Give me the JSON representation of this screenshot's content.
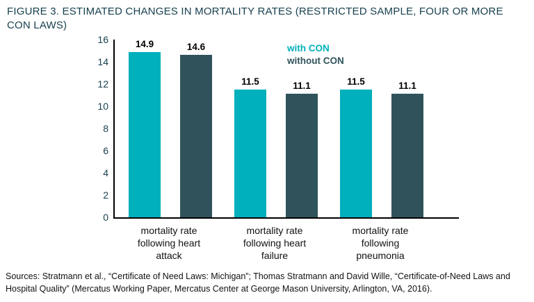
{
  "figure": {
    "title": "FIGURE 3. ESTIMATED CHANGES IN MORTALITY RATES (RESTRICTED SAMPLE, FOUR OR MORE CON LAWS)",
    "source": "Sources: Stratmann et al., “Certificate of Need Laws: Michigan”; Thomas Stratmann and David Wille, “Certificate-of-Need Laws and Hospital Quality” (Mercatus Working Paper, Mercatus Center at George Mason University, Arlington, VA, 2016)."
  },
  "colors": {
    "title_text": "#17404f",
    "with_con": "#00b0bc",
    "without_con": "#30535b",
    "axis": "#000000",
    "value_label": "#000000",
    "category_label": "#111111"
  },
  "chart_data": {
    "type": "bar",
    "title": "FIGURE 3. ESTIMATED CHANGES IN MORTALITY RATES (RESTRICTED SAMPLE, FOUR OR MORE CON LAWS)",
    "categories": [
      "mortality rate\nfollowing heart\nattack",
      "mortality rate\nfollowing heart\nfailure",
      "mortality rate\nfollowing\npneumonia"
    ],
    "series": [
      {
        "name": "with CON",
        "color": "#00b0bc",
        "values": [
          14.9,
          11.5,
          11.5
        ]
      },
      {
        "name": "without CON",
        "color": "#30535b",
        "values": [
          14.6,
          11.1,
          11.1
        ]
      }
    ],
    "xlabel": "",
    "ylabel": "",
    "ylim": [
      0,
      16
    ],
    "yticks": [
      0,
      2,
      4,
      6,
      8,
      10,
      12,
      14,
      16
    ],
    "grid": false,
    "legend_position": "top-center",
    "value_labels_shown": true
  }
}
